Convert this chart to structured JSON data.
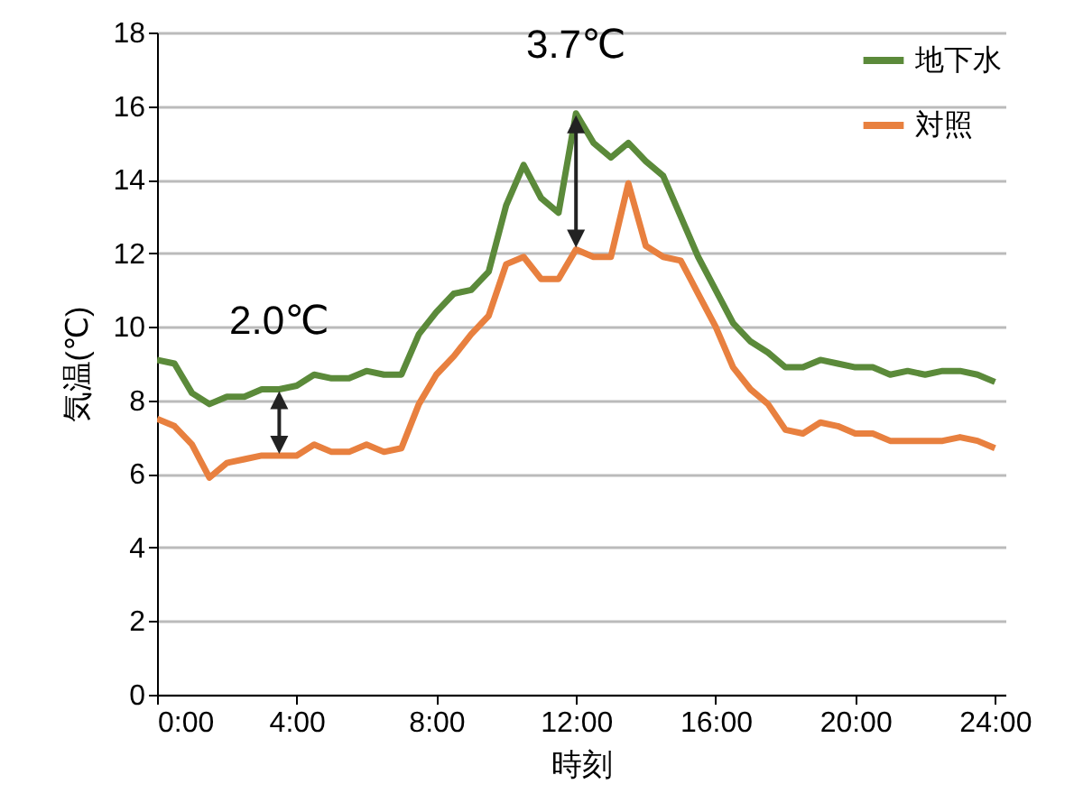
{
  "chart_data": {
    "type": "line",
    "xlabel": "時刻",
    "ylabel": "気温(℃)",
    "x": [
      0,
      0.5,
      1,
      1.5,
      2,
      2.5,
      3,
      3.5,
      4,
      4.5,
      5,
      5.5,
      6,
      6.5,
      7,
      7.5,
      8,
      8.5,
      9,
      9.5,
      10,
      10.5,
      11,
      11.5,
      12,
      12.5,
      13,
      13.5,
      14,
      14.5,
      15,
      15.5,
      16,
      16.5,
      17,
      17.5,
      18,
      18.5,
      19,
      19.5,
      20,
      20.5,
      21,
      21.5,
      22,
      22.5,
      23,
      23.5,
      24
    ],
    "xlim": [
      0,
      24.3
    ],
    "xticks": [
      {
        "value": 0,
        "label": "0:00"
      },
      {
        "value": 4,
        "label": "4:00"
      },
      {
        "value": 8,
        "label": "8:00"
      },
      {
        "value": 12,
        "label": "12:00"
      },
      {
        "value": 16,
        "label": "16:00"
      },
      {
        "value": 20,
        "label": "20:00"
      },
      {
        "value": 24,
        "label": "24:00"
      }
    ],
    "ylim": [
      0,
      18
    ],
    "yticks": [
      0,
      2,
      4,
      6,
      8,
      10,
      12,
      14,
      16,
      18
    ],
    "grid": "y",
    "legend": "top right",
    "line_style": "solid",
    "marker": "none",
    "series": [
      {
        "name": "地下水",
        "color": "#5b8a3a",
        "values": [
          9.1,
          9.0,
          8.2,
          7.9,
          8.1,
          8.1,
          8.3,
          8.3,
          8.4,
          8.7,
          8.6,
          8.6,
          8.8,
          8.7,
          8.7,
          9.8,
          10.4,
          10.9,
          11.0,
          11.5,
          13.3,
          14.4,
          13.5,
          13.1,
          15.8,
          15.0,
          14.6,
          15.0,
          14.5,
          14.1,
          13.0,
          11.9,
          11.0,
          10.1,
          9.6,
          9.3,
          8.9,
          8.9,
          9.1,
          9.0,
          8.9,
          8.9,
          8.7,
          8.8,
          8.7,
          8.8,
          8.8,
          8.7,
          8.5
        ]
      },
      {
        "name": "対照",
        "color": "#e8803f",
        "values": [
          7.5,
          7.3,
          6.8,
          5.9,
          6.3,
          6.4,
          6.5,
          6.5,
          6.5,
          6.8,
          6.6,
          6.6,
          6.8,
          6.6,
          6.7,
          7.9,
          8.7,
          9.2,
          9.8,
          10.3,
          11.7,
          11.9,
          11.3,
          11.3,
          12.1,
          11.9,
          11.9,
          13.9,
          12.2,
          11.9,
          11.8,
          10.9,
          10.0,
          8.9,
          8.3,
          7.9,
          7.2,
          7.1,
          7.4,
          7.3,
          7.1,
          7.1,
          6.9,
          6.9,
          6.9,
          6.9,
          7.0,
          6.9,
          6.7
        ]
      }
    ],
    "annotations": [
      {
        "text": "2.0℃",
        "x": 3.5,
        "y": 8.3
      },
      {
        "text": "3.7℃",
        "x": 12,
        "y": 15.8
      }
    ]
  }
}
